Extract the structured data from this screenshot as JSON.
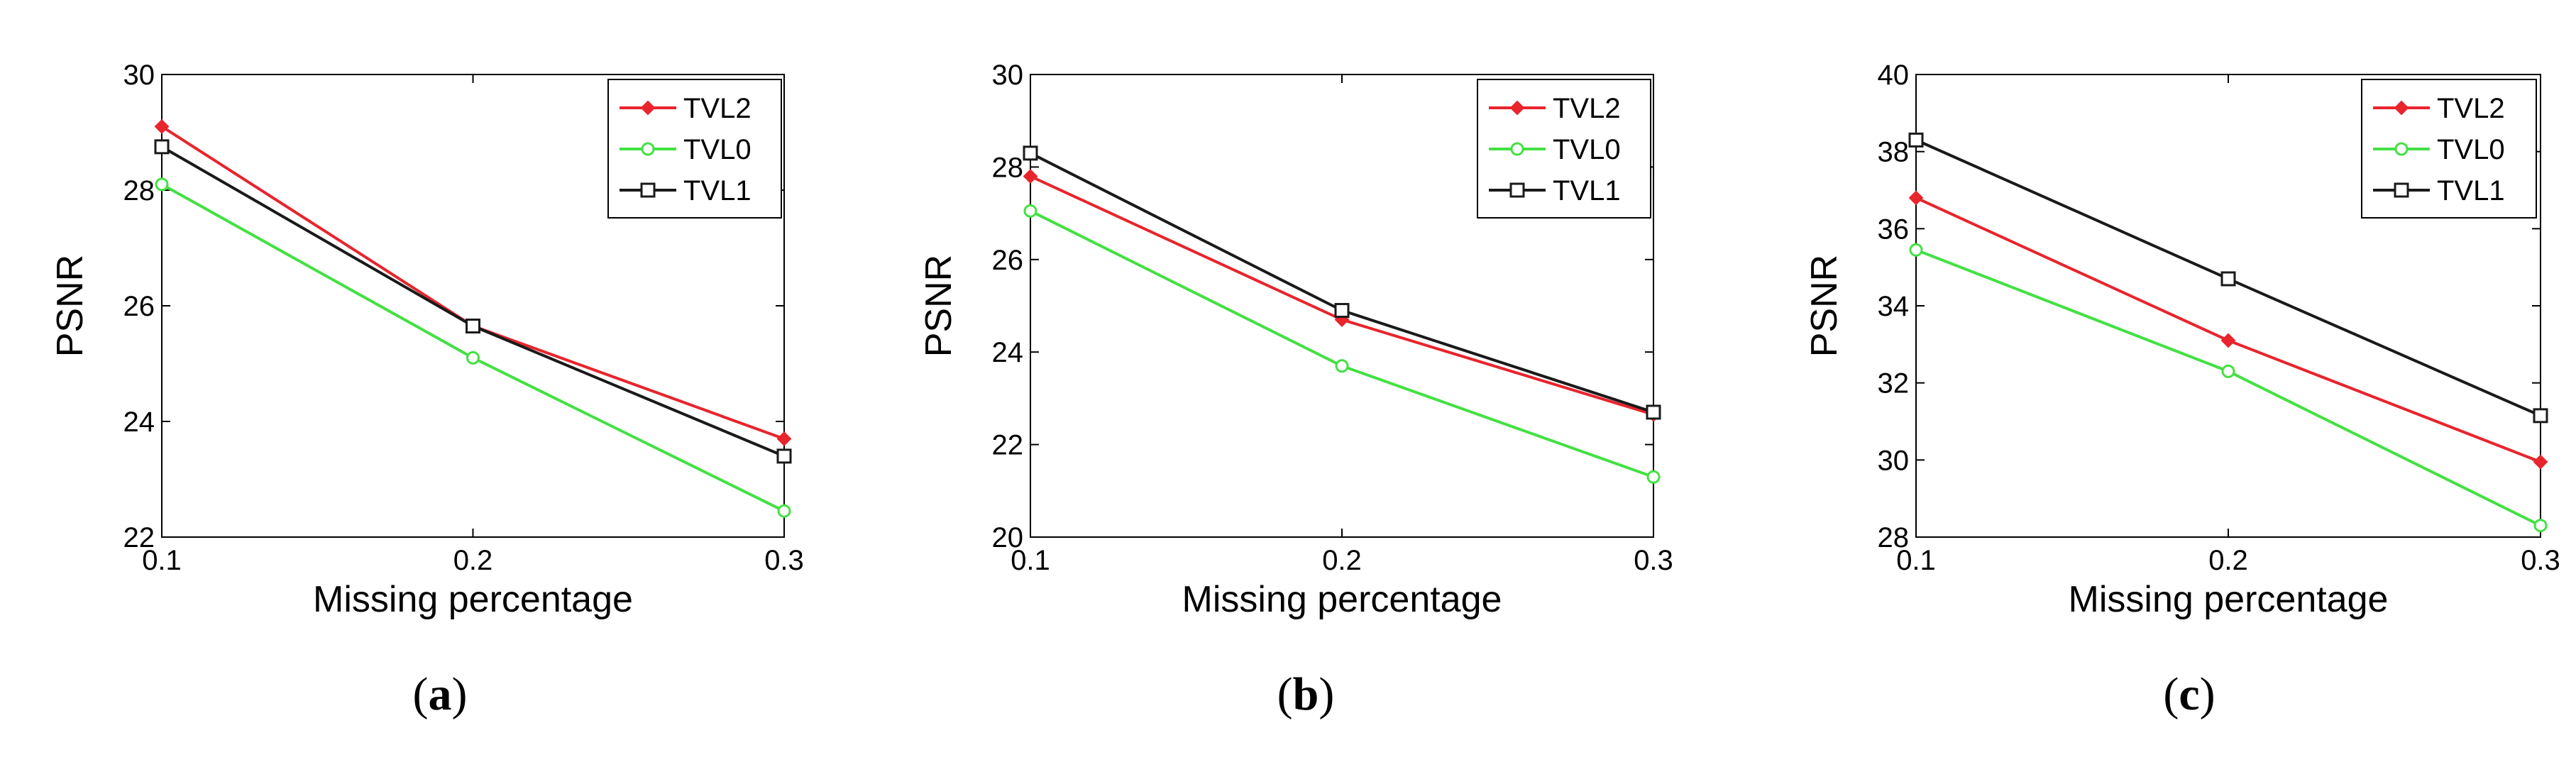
{
  "chart_data": [
    {
      "type": "line",
      "caption": "a",
      "xlabel": "Missing percentage",
      "ylabel": "PSNR",
      "x": [
        0.1,
        0.2,
        0.3
      ],
      "xticks": [
        "0.1",
        "0.2",
        "0.3"
      ],
      "xlim": [
        0.1,
        0.3
      ],
      "ylim": [
        22,
        30
      ],
      "yticks": [
        "22",
        "24",
        "26",
        "28",
        "30"
      ],
      "grid": false,
      "legend_position": "top-right",
      "series": [
        {
          "name": "TVL2",
          "color": "#e8242c",
          "marker": "diamond",
          "values": [
            29.1,
            25.65,
            23.7
          ]
        },
        {
          "name": "TVL0",
          "color": "#44e044",
          "marker": "circle",
          "values": [
            28.1,
            25.1,
            22.45
          ]
        },
        {
          "name": "TVL1",
          "color": "#1a1a1a",
          "marker": "square",
          "values": [
            28.75,
            25.65,
            23.4
          ]
        }
      ]
    },
    {
      "type": "line",
      "caption": "b",
      "xlabel": "Missing percentage",
      "ylabel": "PSNR",
      "x": [
        0.1,
        0.2,
        0.3
      ],
      "xticks": [
        "0.1",
        "0.2",
        "0.3"
      ],
      "xlim": [
        0.1,
        0.3
      ],
      "ylim": [
        20,
        30
      ],
      "yticks": [
        "20",
        "22",
        "24",
        "26",
        "28",
        "30"
      ],
      "grid": false,
      "legend_position": "top-right",
      "series": [
        {
          "name": "TVL2",
          "color": "#e8242c",
          "marker": "diamond",
          "values": [
            27.8,
            24.7,
            22.65
          ]
        },
        {
          "name": "TVL0",
          "color": "#44e044",
          "marker": "circle",
          "values": [
            27.05,
            23.7,
            21.3
          ]
        },
        {
          "name": "TVL1",
          "color": "#1a1a1a",
          "marker": "square",
          "values": [
            28.3,
            24.9,
            22.7
          ]
        }
      ]
    },
    {
      "type": "line",
      "caption": "c",
      "xlabel": "Missing percentage",
      "ylabel": "PSNR",
      "x": [
        0.1,
        0.2,
        0.3
      ],
      "xticks": [
        "0.1",
        "0.2",
        "0.3"
      ],
      "xlim": [
        0.1,
        0.3
      ],
      "ylim": [
        28,
        40
      ],
      "yticks": [
        "28",
        "30",
        "32",
        "34",
        "36",
        "38",
        "40"
      ],
      "grid": false,
      "legend_position": "top-right",
      "series": [
        {
          "name": "TVL2",
          "color": "#e8242c",
          "marker": "diamond",
          "values": [
            36.8,
            33.1,
            29.95
          ]
        },
        {
          "name": "TVL0",
          "color": "#44e044",
          "marker": "circle",
          "values": [
            35.45,
            32.3,
            28.3
          ]
        },
        {
          "name": "TVL1",
          "color": "#1a1a1a",
          "marker": "square",
          "values": [
            38.3,
            34.7,
            31.15
          ]
        }
      ]
    }
  ]
}
